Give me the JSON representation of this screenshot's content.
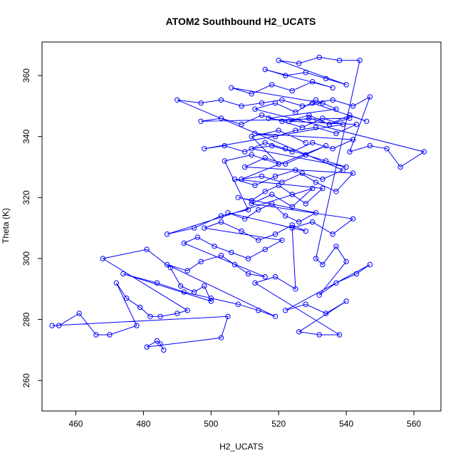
{
  "chart_data": {
    "type": "line",
    "title": "ATOM2 Southbound H2_UCATS",
    "xlabel": "H2_UCATS",
    "ylabel": "Theta (K)",
    "xlim": [
      450,
      568
    ],
    "ylim": [
      250,
      371
    ],
    "x_ticks": [
      460,
      480,
      500,
      520,
      540,
      560
    ],
    "y_ticks": [
      260,
      280,
      300,
      320,
      340,
      360
    ],
    "grid": false,
    "legend": "none",
    "marker": "open-circle",
    "series": [
      {
        "color": "#0000ff",
        "x": [
          486,
          485,
          484,
          481,
          503,
          505,
          453,
          455,
          461,
          466,
          470,
          478,
          472,
          475,
          479,
          482,
          485,
          490,
          493,
          468,
          481,
          488,
          491,
          495,
          498,
          500,
          474,
          484,
          492,
          500,
          508,
          514,
          519,
          487,
          493,
          497,
          503,
          507,
          511,
          516,
          492,
          496,
          501,
          506,
          511,
          516,
          521,
          498,
          503,
          509,
          514,
          519,
          524,
          528,
          505,
          510,
          514,
          518,
          522,
          526,
          531,
          508,
          512,
          516,
          520,
          524,
          528,
          533,
          507,
          513,
          519,
          525,
          531,
          537,
          542,
          510,
          516,
          522,
          528,
          534,
          540,
          512,
          518,
          524,
          530,
          536,
          542,
          513,
          519,
          525,
          531,
          537,
          543,
          523,
          529,
          535,
          541,
          546,
          530,
          536,
          542,
          547,
          541,
          547,
          552,
          556,
          563,
          513,
          519,
          525,
          531,
          537,
          517,
          523,
          529,
          535,
          541,
          497,
          503,
          509,
          515,
          521,
          527,
          533,
          539,
          498,
          504,
          510,
          516,
          522,
          528,
          534,
          509,
          515,
          521,
          527,
          533,
          539,
          490,
          497,
          503,
          509,
          515,
          521,
          527,
          533,
          506,
          512,
          518,
          524,
          530,
          536,
          516,
          522,
          528,
          534,
          540,
          520,
          526,
          532,
          538,
          544,
          531,
          533,
          537,
          540,
          532,
          537,
          543,
          547,
          522,
          528,
          534,
          540,
          526,
          532,
          538,
          513,
          519,
          525,
          524,
          530,
          536,
          542,
          512,
          518,
          524,
          530,
          487,
          495,
          503,
          511,
          504,
          512,
          520,
          512,
          520,
          528
        ],
        "y": [
          270,
          272,
          273,
          271,
          274,
          281,
          278,
          278,
          282,
          275,
          275,
          278,
          292,
          287,
          284,
          281,
          281,
          282,
          283,
          300,
          303,
          297,
          291,
          289,
          291,
          286,
          295,
          292,
          289,
          287,
          285,
          283,
          281,
          298,
          296,
          299,
          301,
          298,
          295,
          294,
          305,
          307,
          304,
          302,
          300,
          303,
          306,
          310,
          312,
          309,
          306,
          308,
          311,
          309,
          315,
          313,
          316,
          318,
          314,
          312,
          315,
          320,
          319,
          322,
          324,
          321,
          318,
          323,
          326,
          324,
          327,
          329,
          325,
          322,
          328,
          330,
          333,
          331,
          334,
          332,
          330,
          336,
          337,
          335,
          338,
          336,
          339,
          341,
          340,
          342,
          343,
          341,
          344,
          345,
          346,
          344,
          347,
          345,
          351,
          352,
          350,
          353,
          335,
          337,
          336,
          330,
          335,
          349,
          351,
          348,
          352,
          349,
          346,
          345,
          347,
          344,
          346,
          345,
          346,
          344,
          347,
          345,
          343,
          346,
          344,
          336,
          337,
          335,
          338,
          336,
          334,
          337,
          326,
          327,
          325,
          328,
          326,
          329,
          352,
          351,
          352,
          350,
          351,
          352,
          350,
          351,
          356,
          354,
          357,
          355,
          358,
          356,
          362,
          360,
          361,
          359,
          357,
          365,
          364,
          366,
          365,
          365,
          300,
          298,
          304,
          299,
          288,
          292,
          295,
          298,
          283,
          285,
          282,
          286,
          276,
          275,
          275,
          292,
          294,
          290,
          310,
          312,
          308,
          313,
          318,
          321,
          317,
          323,
          308,
          310,
          314,
          316,
          332,
          334,
          331,
          340,
          342,
          338
        ]
      }
    ]
  }
}
